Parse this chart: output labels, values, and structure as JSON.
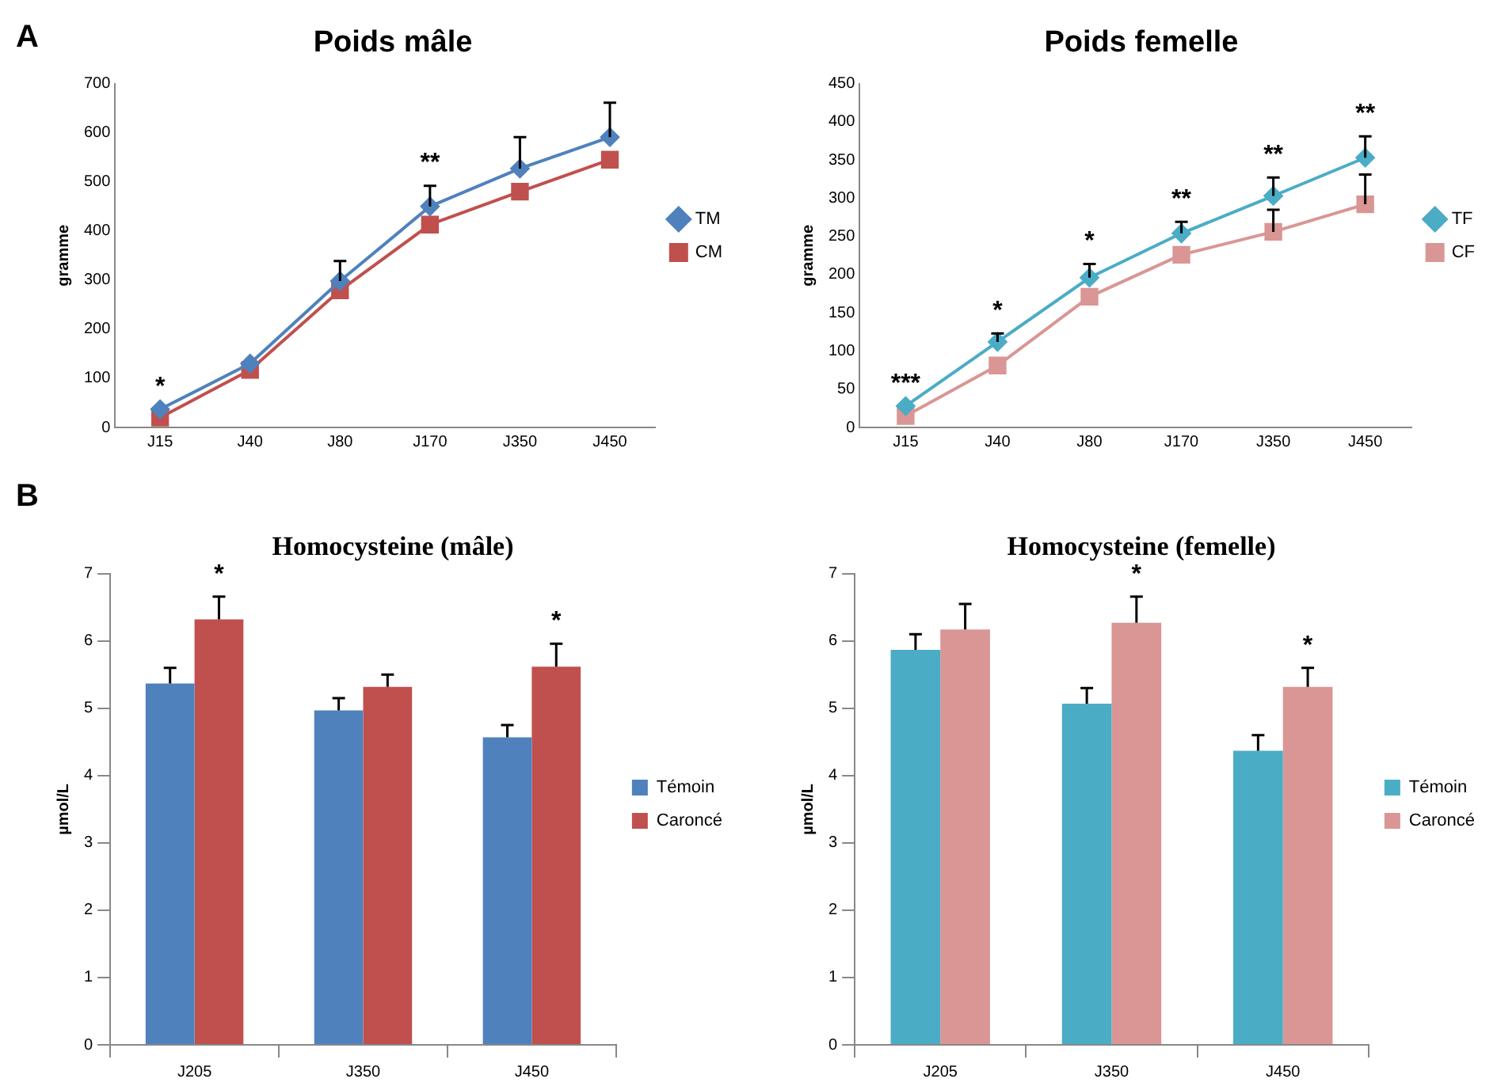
{
  "chart_data": [
    {
      "type": "line",
      "title": "Poids mâle",
      "ylabel": "gramme",
      "categories": [
        "J15",
        "J40",
        "J80",
        "J170",
        "J350",
        "J450"
      ],
      "ylim": [
        0,
        700
      ],
      "yticks": [
        0,
        100,
        200,
        300,
        400,
        500,
        600,
        700
      ],
      "legend": "right",
      "grid": false,
      "series": [
        {
          "name": "TM",
          "color": "#4f81bd",
          "marker": "diamond",
          "values": [
            37,
            130,
            298,
            450,
            527,
            591
          ],
          "errors": [
            null,
            null,
            [
              298,
              339
            ],
            [
              450,
              492
            ],
            [
              527,
              591
            ],
            [
              591,
              661
            ]
          ]
        },
        {
          "name": "CM",
          "color": "#c0504d",
          "marker": "square",
          "values": [
            20,
            117,
            279,
            413,
            480,
            545
          ]
        }
      ],
      "annotations": [
        "A",
        "*",
        "**"
      ]
    },
    {
      "type": "line",
      "title": "Poids femelle",
      "ylabel": "gramme",
      "categories": [
        "J15",
        "J40",
        "J80",
        "J170",
        "J350",
        "J450"
      ],
      "ylim": [
        0,
        450
      ],
      "yticks": [
        0,
        50,
        100,
        150,
        200,
        250,
        300,
        350,
        400,
        450
      ],
      "legend": "right",
      "grid": false,
      "series": [
        {
          "name": "TF",
          "color": "#4bacc6",
          "marker": "diamond",
          "values": [
            28,
            112,
            196,
            254,
            303,
            353
          ],
          "errors": [
            null,
            [
              112,
              123
            ],
            [
              196,
              214
            ],
            [
              254,
              269
            ],
            [
              303,
              327
            ],
            [
              353,
              381
            ]
          ]
        },
        {
          "name": "CF",
          "color": "#d99694",
          "marker": "square",
          "values": [
            15,
            81,
            171,
            226,
            256,
            292
          ],
          "errors": [
            null,
            null,
            null,
            null,
            [
              256,
              285
            ],
            [
              292,
              331
            ]
          ]
        }
      ],
      "annotations": [
        "***",
        "*",
        "*",
        "**",
        "**",
        "**"
      ]
    },
    {
      "type": "bar",
      "title": "Homocysteine (mâle)",
      "ylabel": "µmol/L",
      "categories": [
        "J205",
        "J350",
        "J450"
      ],
      "ylim": [
        0,
        7
      ],
      "yticks": [
        0,
        1,
        2,
        3,
        4,
        5,
        6,
        7
      ],
      "legend": "right",
      "grid": false,
      "series": [
        {
          "name": "Témoin",
          "color": "#4f81bd",
          "values": [
            5.37,
            4.97,
            4.57
          ],
          "errors": [
            [
              5.37,
              5.6
            ],
            [
              4.97,
              5.15
            ],
            [
              4.57,
              4.75
            ]
          ]
        },
        {
          "name": "Caroncé",
          "color": "#c0504d",
          "values": [
            6.32,
            5.32,
            5.62
          ],
          "errors": [
            [
              6.32,
              6.66
            ],
            [
              5.32,
              5.5
            ],
            [
              5.62,
              5.96
            ]
          ]
        }
      ],
      "annotations": [
        "B",
        "*",
        "*"
      ]
    },
    {
      "type": "bar",
      "title": "Homocysteine (femelle)",
      "ylabel": "µmol/L",
      "categories": [
        "J205",
        "J350",
        "J450"
      ],
      "ylim": [
        0,
        7
      ],
      "yticks": [
        0,
        1,
        2,
        3,
        4,
        5,
        6,
        7
      ],
      "legend": "right",
      "grid": false,
      "series": [
        {
          "name": "Témoin",
          "color": "#4bacc6",
          "values": [
            5.87,
            5.07,
            4.37
          ],
          "errors": [
            [
              5.87,
              6.1
            ],
            [
              5.07,
              5.3
            ],
            [
              4.37,
              4.6
            ]
          ]
        },
        {
          "name": "Caroncé",
          "color": "#d99694",
          "values": [
            6.17,
            6.27,
            5.32
          ],
          "errors": [
            [
              6.17,
              6.55
            ],
            [
              6.27,
              6.66
            ],
            [
              5.32,
              5.6
            ]
          ]
        }
      ],
      "annotations": [
        "*",
        "*"
      ]
    }
  ]
}
